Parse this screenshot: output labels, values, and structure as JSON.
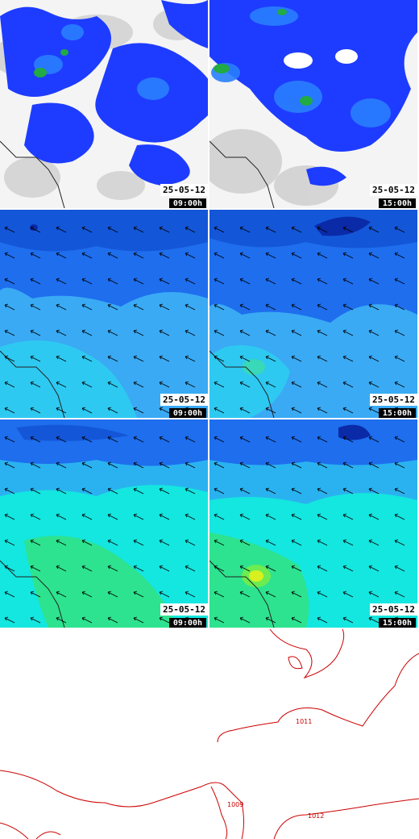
{
  "panels": [
    {
      "id": "precip-left",
      "date": "25-05-12",
      "time": "09:00h"
    },
    {
      "id": "precip-right",
      "date": "25-05-12",
      "time": "15:00h"
    },
    {
      "id": "wind-left",
      "date": "25-05-12",
      "time": "09:00h"
    },
    {
      "id": "wind-right",
      "date": "25-05-12",
      "time": "15:00h"
    },
    {
      "id": "wave-left",
      "date": "25-05-12",
      "time": "09:00h"
    },
    {
      "id": "wave-right",
      "date": "25-05-12",
      "time": "15:00h"
    }
  ],
  "isobars": {
    "labels": [
      "1011",
      "1009",
      "1012"
    ]
  },
  "colors": {
    "precip_cloud": "#c8c8c8",
    "precip_low": "#1e3cff",
    "precip_mid": "#22aa44",
    "wind_dark": "#0a2aa8",
    "wind_mid": "#1e6eee",
    "wind_light": "#3aaaf4",
    "wind_cyan": "#2ad6f0",
    "wave_blue": "#1e6eee",
    "wave_cyan": "#14e6e0",
    "wave_green": "#34e27a",
    "wave_yellow": "#d8f020",
    "isobar": "#cc0000"
  }
}
